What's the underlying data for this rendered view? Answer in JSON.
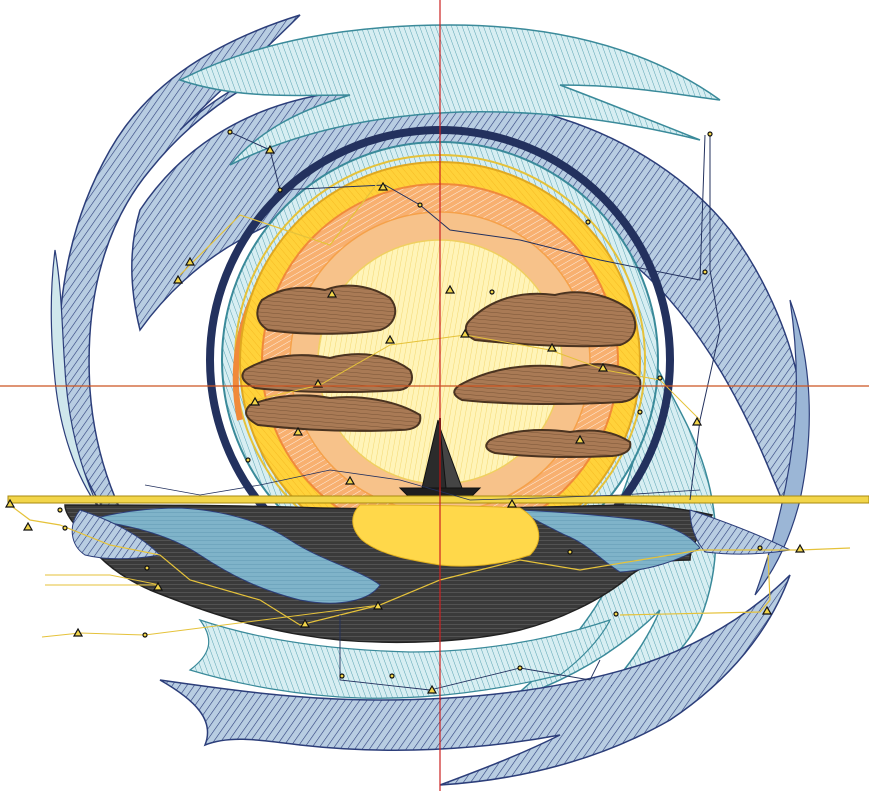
{
  "app": {
    "view": "embroidery-stitch-design-canvas"
  },
  "colors": {
    "background": "#ffffff",
    "swirl_navy": "#2c3e7a",
    "swirl_light_blue": "#cfe7ec",
    "swirl_mid_blue": "#9bb6d6",
    "swirl_teal_outline": "#3a8a9a",
    "sun_core": "#fff1a8",
    "sun_ring_yellow": "#ffd23a",
    "sun_ring_orange": "#f5a14a",
    "sun_ring_deep_orange": "#f08a3a",
    "cloud_brown": "#a97a55",
    "cloud_outline": "#4a3320",
    "water_black": "#3a3a3a",
    "water_blue": "#7fb3c9",
    "water_yellow": "#ffd84a",
    "horizon_yellow": "#f2d54a",
    "guide_red": "#cc2222",
    "guide_orange": "#cc5522",
    "travel_path_yellow": "#e5c23a",
    "travel_path_navy": "#23315e"
  },
  "icons": [
    "stitch-start-triangle-marker",
    "stitch-node-dot-marker"
  ]
}
